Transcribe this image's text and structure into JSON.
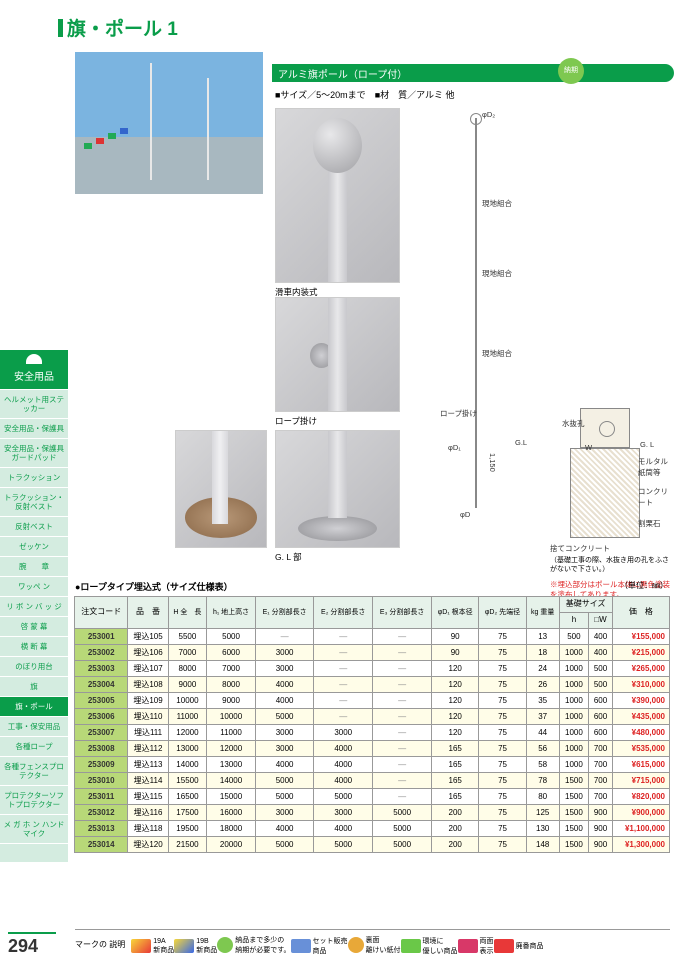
{
  "page": {
    "title": "旗・ポール 1",
    "number": "294"
  },
  "product": {
    "header": "アルミ旗ポール（ロープ付）",
    "badge": "納期",
    "size_label": "■サイズ／5～20mまで",
    "material_label": "■材　質／アルミ 他"
  },
  "captions": {
    "d1": "滑車内装式",
    "d2": "ロープ掛け",
    "d4": "G. L 部"
  },
  "diagram": {
    "labels": [
      "φD₂",
      "現地組合",
      "現地組合",
      "現地組合",
      "ロープ掛け",
      "φD₁",
      "φD",
      "1,150",
      "G.L",
      "W",
      "水抜孔",
      "G. L",
      "モルタル紙筒等",
      "コンクリート",
      "割栗石",
      "捨てコンクリート"
    ],
    "note1": "（基礎工事の際、水抜き用の孔をふさがないで下さい。）",
    "note2": "※埋込部分はポール本体に黒色塗装を塗布してあります。"
  },
  "sidebar": {
    "category": "安全用品",
    "items": [
      "ヘルメット用ステッカー",
      "安全用品・保護具",
      "安全用品・保護具ガードパッド",
      "トラクッション",
      "トラクッション・反射ベスト",
      "反射ベスト",
      "ゼッケン",
      "腕　　章",
      "ワッペ ン",
      "リ ボ ン バ ッ ジ",
      "啓 蒙 幕",
      "横 断 幕",
      "のぼり用台",
      "旗",
      "旗・ポール",
      "工事・保安用品",
      "各種ロープ",
      "各種フェンスプロテクター",
      "プロテクターソフトプロテクター",
      "メ ガ ホ ン ハンドマイク",
      ""
    ],
    "activeIndex": 14
  },
  "table": {
    "title": "●ロープタイプ埋込式（サイズ仕様表）",
    "unit": "（単位：㎜）",
    "headers": {
      "code": "注文コード",
      "model": "品　番",
      "H": "H\n全　長",
      "h1": "h₁\n地上高さ",
      "E1": "E₁\n分割部長さ",
      "E2": "E₂\n分割部長さ",
      "E3": "E₃\n分割部長さ",
      "D1": "φD₁\n根本径",
      "D2": "φD₂\n先端径",
      "kg": "kg\n重量",
      "base": "基礎サイズ",
      "base_h": "h",
      "base_w": "□W",
      "price": "価　格"
    },
    "rows": [
      {
        "code": "253001",
        "model": "埋込105",
        "H": "5500",
        "h1": "5000",
        "E1": "—",
        "E2": "—",
        "E3": "—",
        "D1": "90",
        "D2": "75",
        "kg": "13",
        "bh": "500",
        "bw": "400",
        "price": "¥155,000",
        "alt": false
      },
      {
        "code": "253002",
        "model": "埋込106",
        "H": "7000",
        "h1": "6000",
        "E1": "3000",
        "E2": "—",
        "E3": "—",
        "D1": "90",
        "D2": "75",
        "kg": "18",
        "bh": "1000",
        "bw": "400",
        "price": "¥215,000",
        "alt": true
      },
      {
        "code": "253003",
        "model": "埋込107",
        "H": "8000",
        "h1": "7000",
        "E1": "3000",
        "E2": "—",
        "E3": "—",
        "D1": "120",
        "D2": "75",
        "kg": "24",
        "bh": "1000",
        "bw": "500",
        "price": "¥265,000",
        "alt": false
      },
      {
        "code": "253004",
        "model": "埋込108",
        "H": "9000",
        "h1": "8000",
        "E1": "4000",
        "E2": "—",
        "E3": "—",
        "D1": "120",
        "D2": "75",
        "kg": "26",
        "bh": "1000",
        "bw": "500",
        "price": "¥310,000",
        "alt": true
      },
      {
        "code": "253005",
        "model": "埋込109",
        "H": "10000",
        "h1": "9000",
        "E1": "4000",
        "E2": "—",
        "E3": "—",
        "D1": "120",
        "D2": "75",
        "kg": "35",
        "bh": "1000",
        "bw": "600",
        "price": "¥390,000",
        "alt": false
      },
      {
        "code": "253006",
        "model": "埋込110",
        "H": "11000",
        "h1": "10000",
        "E1": "5000",
        "E2": "—",
        "E3": "—",
        "D1": "120",
        "D2": "75",
        "kg": "37",
        "bh": "1000",
        "bw": "600",
        "price": "¥435,000",
        "alt": true
      },
      {
        "code": "253007",
        "model": "埋込111",
        "H": "12000",
        "h1": "11000",
        "E1": "3000",
        "E2": "3000",
        "E3": "—",
        "D1": "120",
        "D2": "75",
        "kg": "44",
        "bh": "1000",
        "bw": "600",
        "price": "¥480,000",
        "alt": false
      },
      {
        "code": "253008",
        "model": "埋込112",
        "H": "13000",
        "h1": "12000",
        "E1": "3000",
        "E2": "4000",
        "E3": "—",
        "D1": "165",
        "D2": "75",
        "kg": "56",
        "bh": "1000",
        "bw": "700",
        "price": "¥535,000",
        "alt": true
      },
      {
        "code": "253009",
        "model": "埋込113",
        "H": "14000",
        "h1": "13000",
        "E1": "4000",
        "E2": "4000",
        "E3": "—",
        "D1": "165",
        "D2": "75",
        "kg": "58",
        "bh": "1000",
        "bw": "700",
        "price": "¥615,000",
        "alt": false
      },
      {
        "code": "253010",
        "model": "埋込114",
        "H": "15500",
        "h1": "14000",
        "E1": "5000",
        "E2": "4000",
        "E3": "—",
        "D1": "165",
        "D2": "75",
        "kg": "78",
        "bh": "1500",
        "bw": "700",
        "price": "¥715,000",
        "alt": true
      },
      {
        "code": "253011",
        "model": "埋込115",
        "H": "16500",
        "h1": "15000",
        "E1": "5000",
        "E2": "5000",
        "E3": "—",
        "D1": "165",
        "D2": "75",
        "kg": "80",
        "bh": "1500",
        "bw": "700",
        "price": "¥820,000",
        "alt": false
      },
      {
        "code": "253012",
        "model": "埋込116",
        "H": "17500",
        "h1": "16000",
        "E1": "3000",
        "E2": "3000",
        "E3": "5000",
        "D1": "200",
        "D2": "75",
        "kg": "125",
        "bh": "1500",
        "bw": "900",
        "price": "¥900,000",
        "alt": true
      },
      {
        "code": "253013",
        "model": "埋込118",
        "H": "19500",
        "h1": "18000",
        "E1": "4000",
        "E2": "4000",
        "E3": "5000",
        "D1": "200",
        "D2": "75",
        "kg": "130",
        "bh": "1500",
        "bw": "900",
        "price": "¥1,100,000",
        "alt": false
      },
      {
        "code": "253014",
        "model": "埋込120",
        "H": "21500",
        "h1": "20000",
        "E1": "5000",
        "E2": "5000",
        "E3": "5000",
        "D1": "200",
        "D2": "75",
        "kg": "148",
        "bh": "1500",
        "bw": "900",
        "price": "¥1,300,000",
        "alt": true
      }
    ]
  },
  "legend": {
    "label": "マークの\n説明",
    "items": [
      {
        "cls": "new1",
        "txt": "19A\n新商品"
      },
      {
        "cls": "new2",
        "txt": "19B\n新商品"
      },
      {
        "cls": "nouki",
        "txt": "納品まで多少の\n納期が必要です。"
      },
      {
        "cls": "set",
        "txt": "セット販売\n商品"
      },
      {
        "cls": "ura",
        "txt": "裏面\n離けい紙付"
      },
      {
        "cls": "eco",
        "txt": "環境に\n優しい商品"
      },
      {
        "cls": "ryo",
        "txt": "両面\n表示"
      },
      {
        "cls": "hai",
        "txt": "廃番商品"
      }
    ]
  }
}
